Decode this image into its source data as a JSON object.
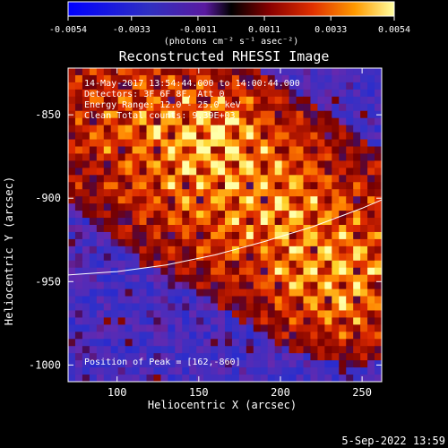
{
  "colorbar": {
    "ticks": [
      "-0.0054",
      "-0.0033",
      "-0.0011",
      "0.0011",
      "0.0033",
      "0.0054"
    ],
    "unit_label": "(photons cm⁻² s⁻¹ asec⁻²)",
    "range": [
      -0.0054,
      0.0054
    ]
  },
  "chart_data": {
    "type": "heatmap",
    "title": "Reconstructed RHESSI Image",
    "xlabel": "Heliocentric X (arcsec)",
    "ylabel": "Heliocentric Y (arcsec)",
    "xlim": [
      70,
      262
    ],
    "ylim": [
      -1010,
      -822
    ],
    "xticks": [
      100,
      150,
      200,
      250
    ],
    "yticks": [
      -850,
      -900,
      -950,
      -1000
    ],
    "annotations": [
      "14-May-2017 13:54:44.000 to 14:00:44.000",
      "Detectors: 3F 6F 8F, Att 0",
      "Energy Range: 12.0 - 25.0 keV",
      "Clean     Total counts: 9.39E+03"
    ],
    "peak_label": "Position of Peak = [162,-860]",
    "peak": [
      162,
      -860
    ],
    "limb": {
      "x": [
        70,
        100,
        130,
        160,
        190,
        220,
        250,
        262
      ],
      "y": [
        -946,
        -944,
        -940,
        -934,
        -926,
        -917,
        -906,
        -901
      ]
    },
    "colormap": "rhessi red-temperature / blue negative",
    "source": {
      "peak": [
        162,
        -860
      ],
      "extent_x": [
        100,
        262
      ],
      "extent_y": [
        -985,
        -840
      ]
    }
  },
  "footer": {
    "timestamp": "5-Sep-2022 13:59"
  }
}
